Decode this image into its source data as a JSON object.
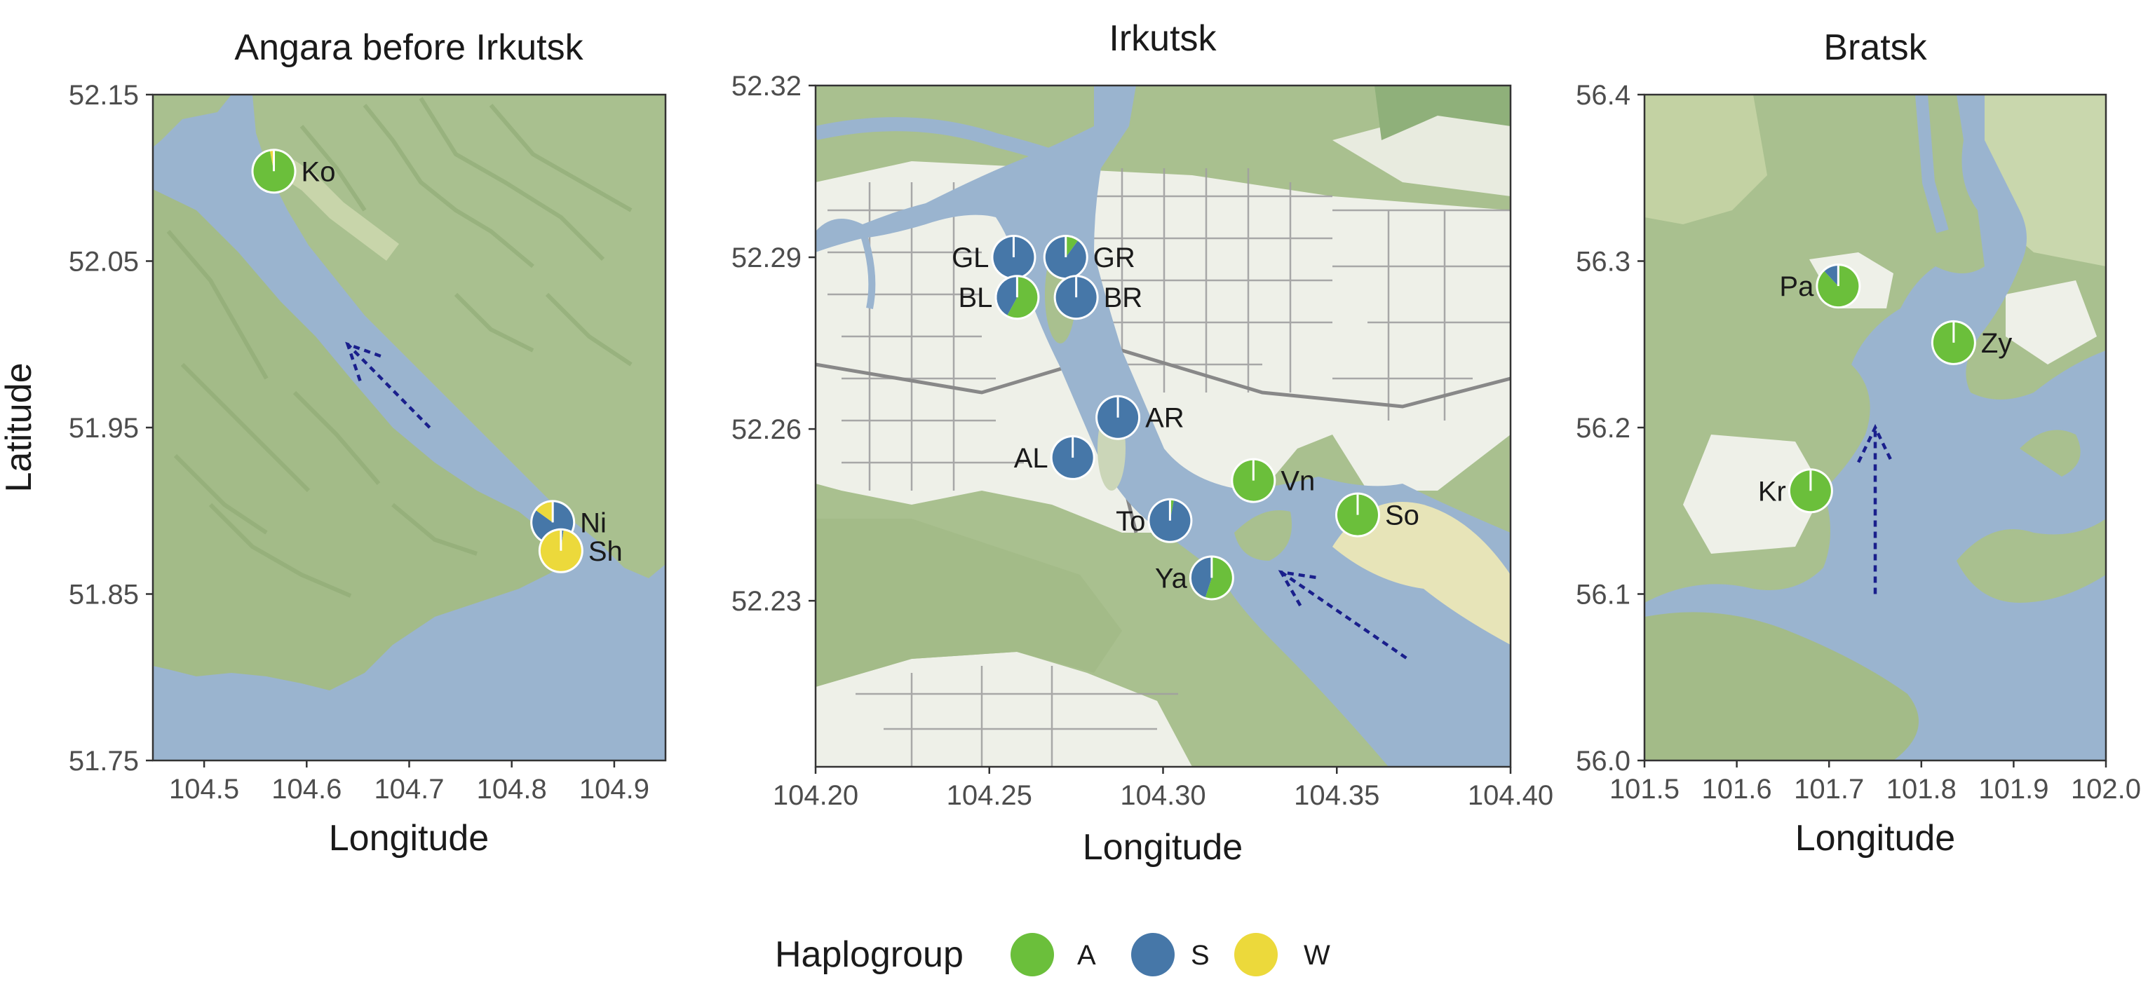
{
  "y_axis_label": "Latitude",
  "legend": {
    "title": "Haplogroup",
    "items": [
      {
        "key": "A",
        "label": "A",
        "color": "#6bbf3b"
      },
      {
        "key": "S",
        "label": "S",
        "color": "#4677a8"
      },
      {
        "key": "W",
        "label": "W",
        "color": "#ecd93b"
      }
    ]
  },
  "colors": {
    "water": "#9ab4cf",
    "land": "#a9c08f",
    "urban": "#eef0e8",
    "road": "#9a9a9a",
    "arrow": "#1a1f8c",
    "slice_edge": "#ffffff"
  },
  "panels": [
    {
      "id": "angara",
      "title": "Angara before Irkutsk",
      "xlabel": "Longitude",
      "xlim": [
        104.45,
        104.95
      ],
      "ylim": [
        51.75,
        52.15
      ],
      "xticks": [
        "104.5",
        "104.6",
        "104.7",
        "104.8",
        "104.9"
      ],
      "yticks": [
        "51.75",
        "51.85",
        "51.95",
        "52.05",
        "52.15"
      ],
      "sites": [
        {
          "label": "Ko",
          "lon": 104.568,
          "lat": 52.104,
          "A": 0.97,
          "S": 0.0,
          "W": 0.03
        },
        {
          "label": "Ni",
          "lon": 104.84,
          "lat": 51.893,
          "A": 0.0,
          "S": 0.85,
          "W": 0.15
        },
        {
          "label": "Sh",
          "lon": 104.848,
          "lat": 51.876,
          "A": 0.0,
          "S": 0.02,
          "W": 0.98
        }
      ],
      "flow_arrow": {
        "from": [
          104.72,
          51.95
        ],
        "to": [
          104.64,
          52.0
        ]
      }
    },
    {
      "id": "irkutsk",
      "title": "Irkutsk",
      "xlabel": "Longitude",
      "xlim": [
        104.2,
        104.4
      ],
      "ylim": [
        52.201,
        52.32
      ],
      "xticks": [
        "104.20",
        "104.25",
        "104.30",
        "104.35",
        "104.40"
      ],
      "yticks": [
        "52.23",
        "52.26",
        "52.29",
        "52.32"
      ],
      "sites": [
        {
          "label": "GL",
          "lon": 104.257,
          "lat": 52.29,
          "A": 0.0,
          "S": 1.0,
          "W": 0.0
        },
        {
          "label": "GR",
          "lon": 104.272,
          "lat": 52.29,
          "A": 0.1,
          "S": 0.9,
          "W": 0.0
        },
        {
          "label": "BL",
          "lon": 104.258,
          "lat": 52.283,
          "A": 0.58,
          "S": 0.42,
          "W": 0.0
        },
        {
          "label": "BR",
          "lon": 104.275,
          "lat": 52.283,
          "A": 0.0,
          "S": 1.0,
          "W": 0.0
        },
        {
          "label": "AR",
          "lon": 104.287,
          "lat": 52.262,
          "A": 0.0,
          "S": 1.0,
          "W": 0.0
        },
        {
          "label": "AL",
          "lon": 104.274,
          "lat": 52.255,
          "A": 0.0,
          "S": 1.0,
          "W": 0.0
        },
        {
          "label": "Vn",
          "lon": 104.326,
          "lat": 52.251,
          "A": 1.0,
          "S": 0.0,
          "W": 0.0
        },
        {
          "label": "So",
          "lon": 104.356,
          "lat": 52.245,
          "A": 1.0,
          "S": 0.0,
          "W": 0.0
        },
        {
          "label": "To",
          "lon": 104.302,
          "lat": 52.244,
          "A": 0.03,
          "S": 0.97,
          "W": 0.0
        },
        {
          "label": "Ya",
          "lon": 104.314,
          "lat": 52.234,
          "A": 0.55,
          "S": 0.45,
          "W": 0.0
        }
      ],
      "flow_arrow": {
        "from": [
          104.37,
          52.22
        ],
        "to": [
          104.334,
          52.235
        ]
      }
    },
    {
      "id": "bratsk",
      "title": "Bratsk",
      "xlabel": "Longitude",
      "xlim": [
        101.5,
        102.0
      ],
      "ylim": [
        56.0,
        56.4
      ],
      "xticks": [
        "101.5",
        "101.6",
        "101.7",
        "101.8",
        "101.9",
        "102.0"
      ],
      "yticks": [
        "56.0",
        "56.1",
        "56.2",
        "56.3",
        "56.4"
      ],
      "sites": [
        {
          "label": "Pa",
          "lon": 101.71,
          "lat": 56.285,
          "A": 0.88,
          "S": 0.12,
          "W": 0.0
        },
        {
          "label": "Zy",
          "lon": 101.835,
          "lat": 56.251,
          "A": 1.0,
          "S": 0.0,
          "W": 0.0
        },
        {
          "label": "Kr",
          "lon": 101.68,
          "lat": 56.162,
          "A": 1.0,
          "S": 0.0,
          "W": 0.0
        }
      ],
      "flow_arrow": {
        "from": [
          101.75,
          56.1
        ],
        "to": [
          101.75,
          56.2
        ]
      }
    }
  ]
}
